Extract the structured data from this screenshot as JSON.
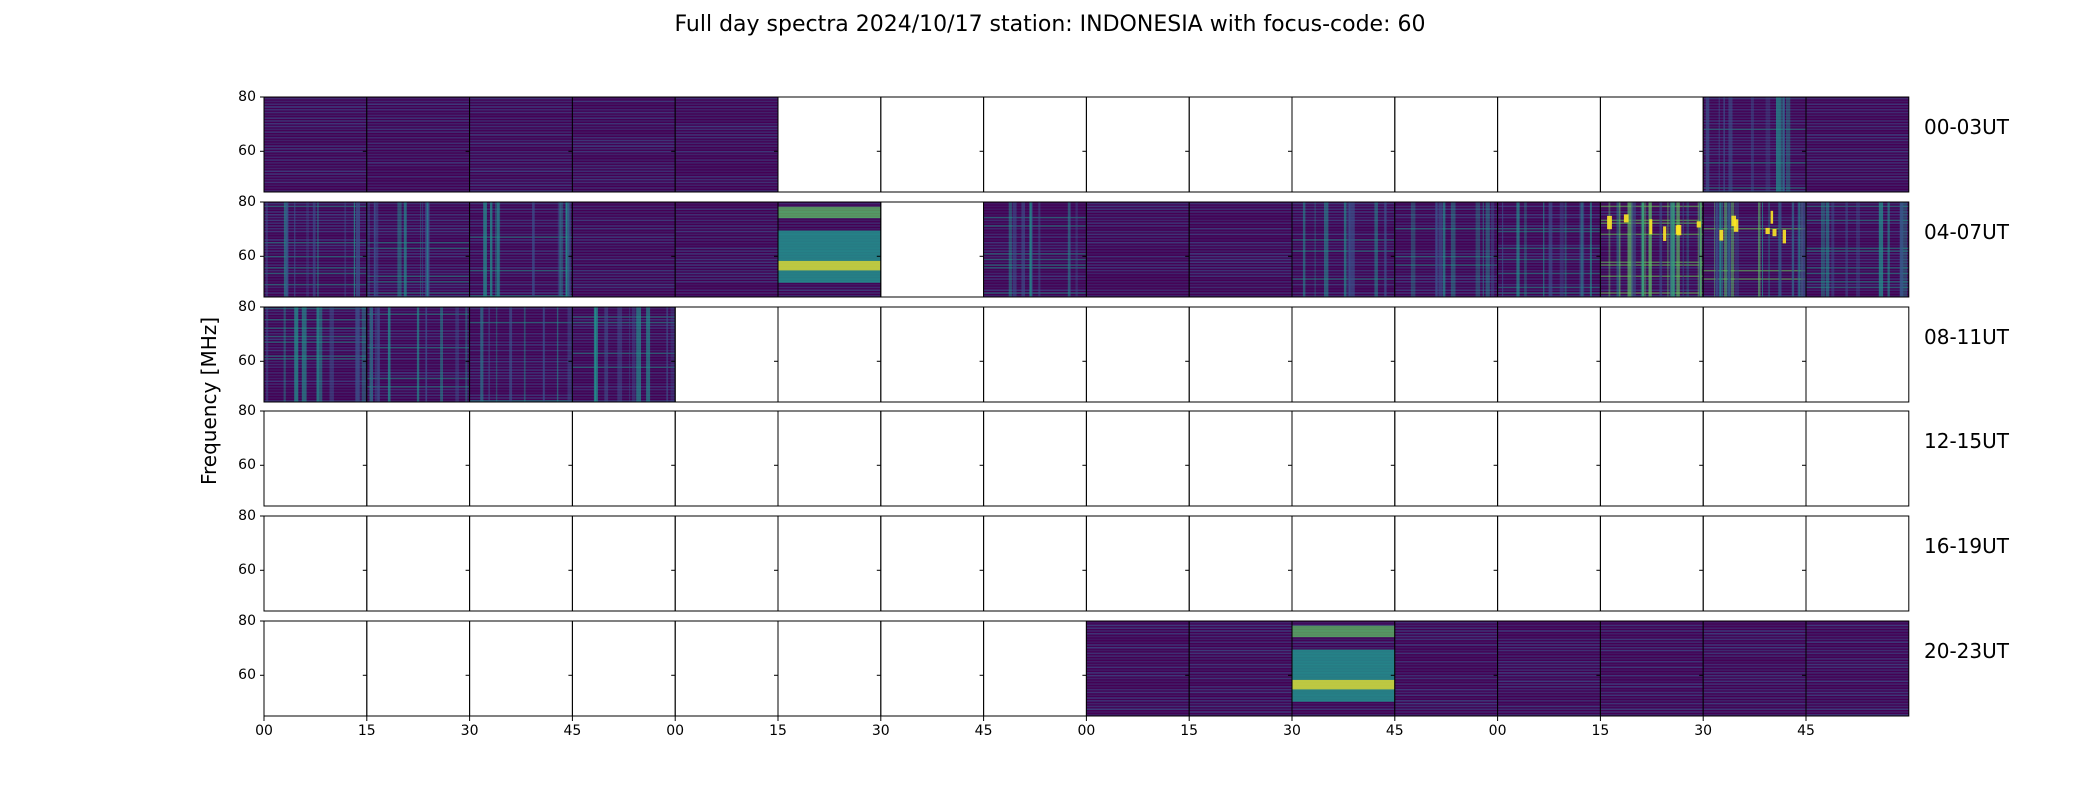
{
  "chart_data": {
    "type": "heatmap",
    "title": "Full day spectra 2024/10/17 station: INDONESIA with focus-code: 60",
    "ylabel": "Frequency [MHz]",
    "ylim": [
      45,
      80
    ],
    "yticks": [
      "80",
      "60"
    ],
    "xticks": [
      "00",
      "15",
      "30",
      "45",
      "00",
      "15",
      "30",
      "45",
      "00",
      "15",
      "30",
      "45",
      "00",
      "15",
      "30",
      "45"
    ],
    "columns_per_row": 16,
    "colormap": [
      "#440154",
      "#3b528b",
      "#21918c",
      "#5ec962",
      "#fde725"
    ],
    "rows": [
      {
        "label": "00-03UT",
        "panels": [
          "plain",
          "plain",
          "plain",
          "plain",
          "plain",
          "empty",
          "empty",
          "empty",
          "empty",
          "empty",
          "empty",
          "empty",
          "empty",
          "empty",
          "active",
          "plain"
        ]
      },
      {
        "label": "04-07UT",
        "panels": [
          "active",
          "active",
          "active",
          "plain",
          "plain",
          "burst",
          "empty",
          "active",
          "plain",
          "plain",
          "active",
          "active",
          "active",
          "intense",
          "intense",
          "active"
        ]
      },
      {
        "label": "08-11UT",
        "panels": [
          "active",
          "active",
          "active",
          "active",
          "empty",
          "empty",
          "empty",
          "empty",
          "empty",
          "empty",
          "empty",
          "empty",
          "empty",
          "empty",
          "empty",
          "empty"
        ]
      },
      {
        "label": "12-15UT",
        "panels": [
          "empty",
          "empty",
          "empty",
          "empty",
          "empty",
          "empty",
          "empty",
          "empty",
          "empty",
          "empty",
          "empty",
          "empty",
          "empty",
          "empty",
          "empty",
          "empty"
        ]
      },
      {
        "label": "16-19UT",
        "panels": [
          "empty",
          "empty",
          "empty",
          "empty",
          "empty",
          "empty",
          "empty",
          "empty",
          "empty",
          "empty",
          "empty",
          "empty",
          "empty",
          "empty",
          "empty",
          "empty"
        ]
      },
      {
        "label": "20-23UT",
        "panels": [
          "empty",
          "empty",
          "empty",
          "empty",
          "empty",
          "empty",
          "empty",
          "empty",
          "plain",
          "plain",
          "burst",
          "plain",
          "plain",
          "plain",
          "plain",
          "plain"
        ]
      }
    ]
  }
}
